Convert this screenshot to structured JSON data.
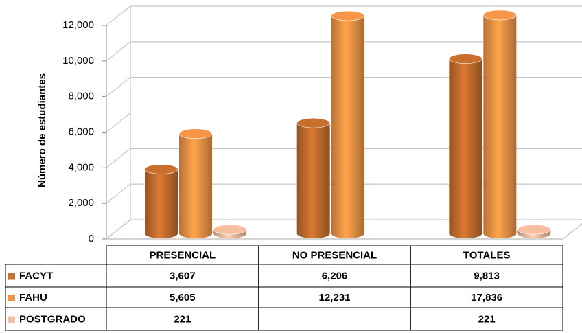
{
  "chart_data": {
    "type": "bar",
    "y_label": "Número de estudiantes",
    "categories": [
      "PRESENCIAL",
      "NO PRESENCIAL",
      "TOTALES"
    ],
    "series": [
      {
        "name": "FACYT",
        "color": "#c86f2e",
        "values": [
          3607,
          6206,
          9813
        ],
        "value_labels": [
          "3,607",
          "6,206",
          "9,813"
        ]
      },
      {
        "name": "FAHU",
        "color": "#f79646",
        "values": [
          5605,
          12231,
          17836
        ],
        "value_labels": [
          "5,605",
          "12,231",
          "17,836"
        ]
      },
      {
        "name": "POSTGRADO",
        "color": "#f5bfa0",
        "values": [
          221,
          null,
          221
        ],
        "value_labels": [
          "221",
          null,
          "221"
        ]
      }
    ],
    "ylim": [
      0,
      12000
    ],
    "yticks": [
      0,
      {
        "value": 2000,
        "label": "2,000"
      },
      {
        "value": 4000,
        "label": "4,000"
      },
      {
        "value": 6000,
        "label": "6,000"
      },
      {
        "value": 8000,
        "label": "8,000"
      },
      {
        "value": 10000,
        "label": "10,000"
      },
      {
        "value": 12000,
        "label": "12,000"
      }
    ],
    "grid": true
  }
}
